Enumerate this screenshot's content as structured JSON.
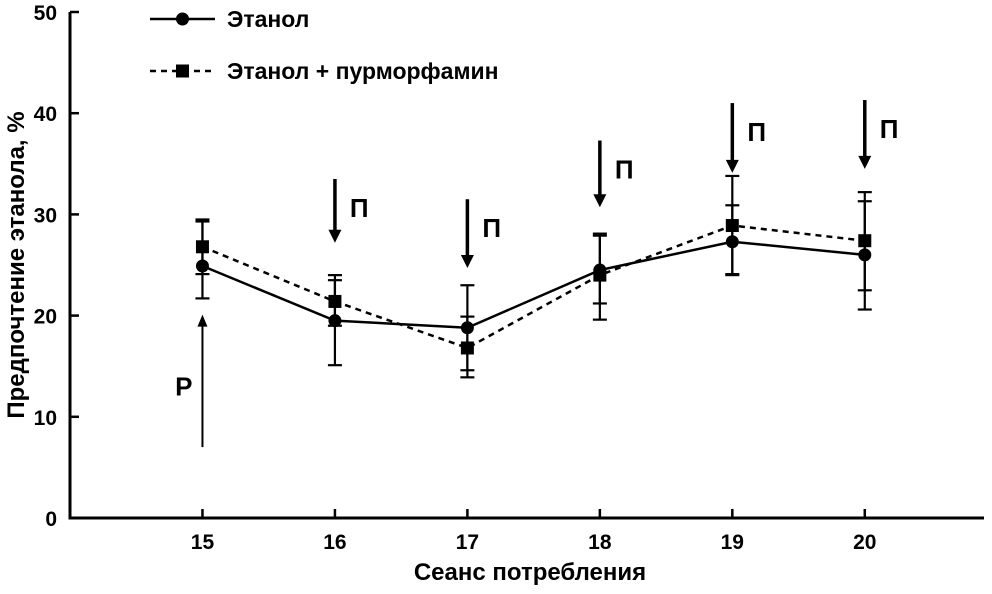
{
  "chart_data": {
    "type": "line",
    "title": "",
    "xlabel": "Сеанс потребления",
    "ylabel": "Предпочтение этанола, %",
    "x": [
      15,
      16,
      17,
      18,
      19,
      20
    ],
    "xlim": [
      14,
      20.9
    ],
    "ylim": [
      0,
      50
    ],
    "yticks": [
      0,
      10,
      20,
      30,
      40,
      50
    ],
    "grid": false,
    "legend_position": "top-left",
    "series": [
      {
        "name": "Этанол",
        "marker": "circle",
        "line_style": "solid",
        "color": "#000000",
        "values": [
          24.9,
          19.5,
          18.8,
          24.5,
          27.3,
          26.0
        ],
        "error_upper": [
          4.4,
          4.0,
          4.2,
          3.4,
          3.6,
          5.3
        ],
        "error_lower": [
          3.2,
          4.4,
          4.2,
          3.3,
          3.2,
          5.4
        ]
      },
      {
        "name": "Этанол + пурморфамин",
        "marker": "square",
        "line_style": "dashed",
        "color": "#000000",
        "values": [
          26.8,
          21.4,
          16.8,
          24.0,
          28.9,
          27.4
        ],
        "error_upper": [
          2.7,
          2.6,
          3.1,
          4.1,
          4.9,
          4.8
        ],
        "error_lower": [
          2.7,
          2.4,
          2.9,
          4.4,
          4.9,
          4.9
        ]
      }
    ],
    "annotations": {
      "down_arrows": [
        {
          "x": 16,
          "y_top": 33.5,
          "y_bottom": 27.3,
          "label": "П"
        },
        {
          "x": 17,
          "y_top": 31.5,
          "y_bottom": 24.8,
          "label": "П"
        },
        {
          "x": 18,
          "y_top": 37.3,
          "y_bottom": 30.8,
          "label": "П"
        },
        {
          "x": 19,
          "y_top": 41.0,
          "y_bottom": 34.2,
          "label": "П"
        },
        {
          "x": 20,
          "y_top": 41.3,
          "y_bottom": 34.6,
          "label": "П"
        }
      ],
      "up_arrow": {
        "x": 15,
        "y_bottom": 7.0,
        "y_top": 20.0,
        "label": "Р",
        "label_y": 13.0
      }
    }
  }
}
